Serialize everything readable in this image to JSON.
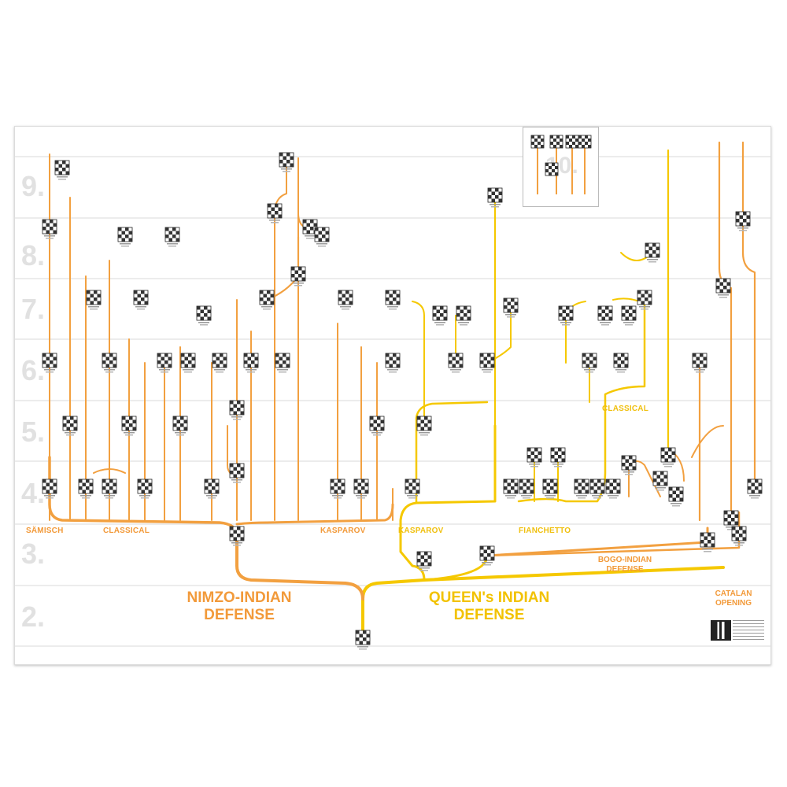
{
  "move_labels": [
    "2.",
    "3.",
    "4.",
    "5.",
    "6.",
    "7.",
    "8.",
    "9.",
    "10."
  ],
  "colors": {
    "nimzo": "#f2a040",
    "queens": "#f5c800",
    "queens_label": "#f0c010",
    "nimzo_label": "#f29a3a",
    "grid": "#d8d8d8",
    "move_label": "#e1e1e1"
  },
  "branch_labels": {
    "samisch": "SÄMISCH",
    "classical_nimzo": "CLASSICAL",
    "kasparov_nimzo": "KASPAROV",
    "kasparov_queens": "KASPAROV",
    "fianchetto": "FIANCHETTO",
    "classical_queens": "CLASSICAL"
  },
  "titles": {
    "nimzo": "NIMZO-INDIAN DEFENSE",
    "queens": "QUEEN's INDIAN DEFENSE",
    "bogo": "BOGO-INDIAN DEFENSE",
    "catalan": "CATALAN OPENING"
  },
  "icons": {
    "board": "chess-board-icon",
    "qr": "qr-code-icon"
  }
}
